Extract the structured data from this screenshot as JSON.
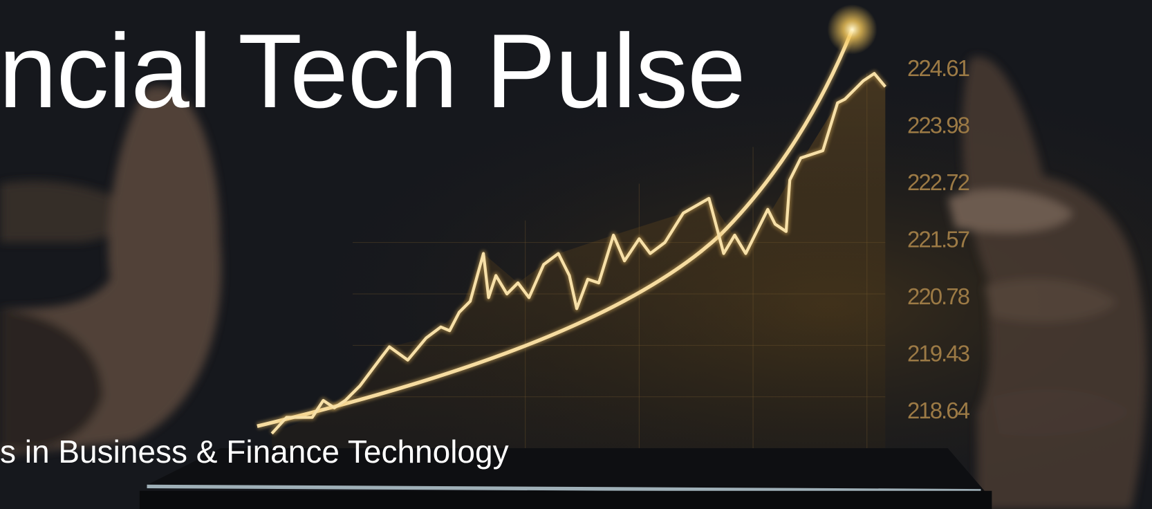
{
  "hero": {
    "title": "ncial Tech Pulse",
    "subtitle": "s in Business & Finance Technology",
    "image_labels": [
      "224.61",
      "223.98",
      "222.72",
      "221.57",
      "220.78",
      "219.43",
      "218.64"
    ]
  }
}
